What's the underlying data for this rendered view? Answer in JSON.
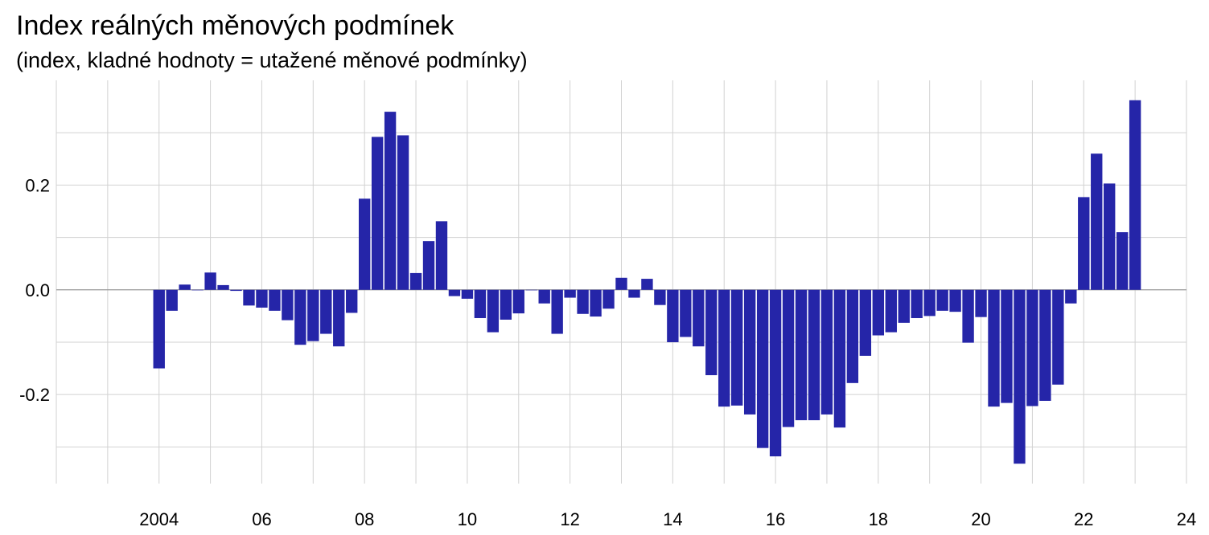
{
  "title": "Index reálných měnových podmínek",
  "subtitle": "(index, kladné hodnoty = utažené měnové podmínky)",
  "chart_data": {
    "type": "bar",
    "title": "Index reálných měnových podmínek",
    "subtitle": "(index, kladné hodnoty = utažené měnové podmínky)",
    "xlabel": "",
    "ylabel": "",
    "x_tick_labels": [
      "2004",
      "06",
      "08",
      "10",
      "12",
      "14",
      "16",
      "18",
      "20",
      "22",
      "24"
    ],
    "x_tick_years": [
      2004,
      2006,
      2008,
      2010,
      2012,
      2014,
      2016,
      2018,
      2020,
      2022,
      2024
    ],
    "y_tick_labels": [
      "0.2",
      "0.0",
      "-0.2"
    ],
    "y_tick_values": [
      0.2,
      0.0,
      -0.2
    ],
    "xlim": [
      2002,
      2024
    ],
    "ylim": [
      -0.37,
      0.4
    ],
    "grid": true,
    "series_color": "#2525a8",
    "series": [
      {
        "x": [
          2004.0,
          2004.25,
          2004.5,
          2004.75,
          2005.0,
          2005.25,
          2005.5,
          2005.75,
          2006.0,
          2006.25,
          2006.5,
          2006.75,
          2007.0,
          2007.25,
          2007.5,
          2007.75,
          2008.0,
          2008.25,
          2008.5,
          2008.75,
          2009.0,
          2009.25,
          2009.5,
          2009.75,
          2010.0,
          2010.25,
          2010.5,
          2010.75,
          2011.0,
          2011.25,
          2011.5,
          2011.75,
          2012.0,
          2012.25,
          2012.5,
          2012.75,
          2013.0,
          2013.25,
          2013.5,
          2013.75,
          2014.0,
          2014.25,
          2014.5,
          2014.75,
          2015.0,
          2015.25,
          2015.5,
          2015.75,
          2016.0,
          2016.25,
          2016.5,
          2016.75,
          2017.0,
          2017.25,
          2017.5,
          2017.75,
          2018.0,
          2018.25,
          2018.5,
          2018.75,
          2019.0,
          2019.25,
          2019.5,
          2019.75,
          2020.0,
          2020.25,
          2020.5,
          2020.75,
          2021.0,
          2021.25,
          2021.5,
          2021.75,
          2022.0,
          2022.25,
          2022.5,
          2022.75,
          2023.0
        ],
        "values": [
          -0.15,
          -0.04,
          0.01,
          0.0,
          0.033,
          0.009,
          -0.002,
          -0.03,
          -0.034,
          -0.04,
          -0.058,
          -0.105,
          -0.098,
          -0.084,
          -0.108,
          -0.044,
          0.174,
          0.292,
          0.34,
          0.295,
          0.032,
          0.093,
          0.131,
          -0.012,
          -0.017,
          -0.054,
          -0.081,
          -0.057,
          -0.045,
          0.0,
          -0.026,
          -0.084,
          -0.015,
          -0.046,
          -0.051,
          -0.036,
          0.023,
          -0.015,
          0.021,
          -0.029,
          -0.1,
          -0.09,
          -0.108,
          -0.163,
          -0.223,
          -0.221,
          -0.238,
          -0.302,
          -0.318,
          -0.262,
          -0.249,
          -0.249,
          -0.238,
          -0.263,
          -0.178,
          -0.126,
          -0.087,
          -0.081,
          -0.063,
          -0.054,
          -0.05,
          -0.04,
          -0.042,
          -0.101,
          -0.052,
          -0.223,
          -0.216,
          -0.332,
          -0.222,
          -0.212,
          -0.181,
          -0.026,
          0.177,
          0.26,
          0.203,
          0.11,
          0.362
        ]
      }
    ]
  }
}
